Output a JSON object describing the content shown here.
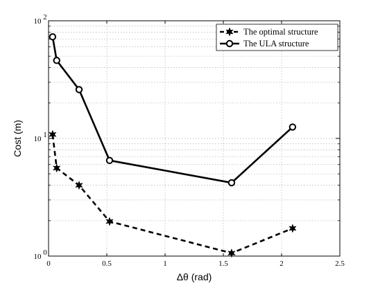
{
  "chart_data": {
    "type": "line",
    "xlabel": "Δθ (rad)",
    "ylabel": "Cost (m)",
    "xlim": [
      0,
      2.5
    ],
    "ylim": [
      1,
      100
    ],
    "yscale": "log",
    "grid": true,
    "legend_position": "top-right",
    "x_ticks": [
      {
        "value": 0,
        "label": "0"
      },
      {
        "value": 0.5,
        "label": "0.5"
      },
      {
        "value": 1,
        "label": "1"
      },
      {
        "value": 1.5,
        "label": "1.5"
      },
      {
        "value": 2,
        "label": "2"
      },
      {
        "value": 2.5,
        "label": "2.5"
      }
    ],
    "y_ticks": [
      {
        "value": 1,
        "base": "10",
        "exp": "0"
      },
      {
        "value": 10,
        "base": "10",
        "exp": "1"
      },
      {
        "value": 100,
        "base": "10",
        "exp": "2"
      }
    ],
    "series": [
      {
        "name": "The optimal structure",
        "line_style": "dashed",
        "marker": "star",
        "color": "#000000",
        "points": [
          {
            "x": 0.0349,
            "y": 10.8
          },
          {
            "x": 0.0698,
            "y": 5.6
          },
          {
            "x": 0.2618,
            "y": 4.0
          },
          {
            "x": 0.5236,
            "y": 1.97
          },
          {
            "x": 1.5708,
            "y": 1.06
          },
          {
            "x": 2.0944,
            "y": 1.72
          }
        ]
      },
      {
        "name": "The ULA structure",
        "line_style": "solid",
        "marker": "circle",
        "color": "#000000",
        "points": [
          {
            "x": 0.0349,
            "y": 73
          },
          {
            "x": 0.0698,
            "y": 46
          },
          {
            "x": 0.2618,
            "y": 26
          },
          {
            "x": 0.5236,
            "y": 6.5
          },
          {
            "x": 1.5708,
            "y": 4.2
          },
          {
            "x": 2.0944,
            "y": 12.5
          }
        ]
      }
    ]
  }
}
